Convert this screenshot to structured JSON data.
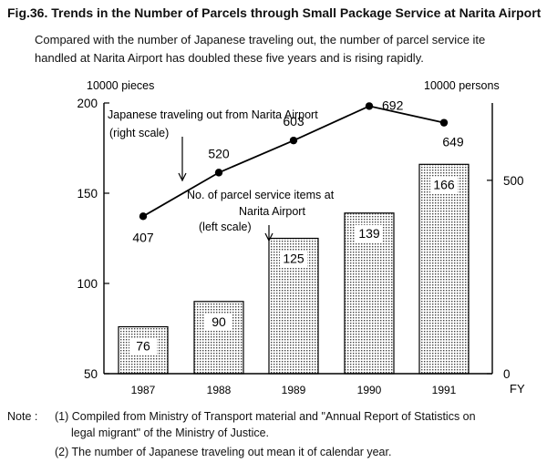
{
  "header": {
    "title": "Fig.36. Trends in the Number of Parcels through Small Package Service at Narita Airport",
    "subtitle_line1": "Compared with the number of Japanese traveling out, the number of parcel service ite",
    "subtitle_line2": "handled at Narita Airport has doubled these five years and is rising rapidly."
  },
  "chart_data": {
    "type": "bar",
    "categories": [
      "1987",
      "1988",
      "1989",
      "1990",
      "1991"
    ],
    "xlabel": "FY",
    "left_axis": {
      "unit": "10000 pieces",
      "ylim": [
        50,
        200
      ],
      "ticks": [
        "50",
        "100",
        "150",
        "200"
      ]
    },
    "right_axis": {
      "unit": "10000 persons",
      "ylim": [
        0,
        700
      ],
      "ticks": [
        "0",
        "500"
      ]
    },
    "series": [
      {
        "name": "No. of parcel service items at Narita Airport",
        "axis_note": "(left scale)",
        "type": "bar",
        "values": [
          76,
          90,
          125,
          139,
          166
        ]
      },
      {
        "name": "Japanese traveling out from Narita Airport",
        "axis_note": "(right scale)",
        "type": "line",
        "values": [
          407,
          520,
          603,
          692,
          649
        ]
      }
    ],
    "annotations": {
      "line_label_1": "Japanese traveling out from Narita Airport",
      "line_label_2": "(right scale)",
      "bar_label_1": "No. of parcel service items at",
      "bar_label_2": "Narita Airport",
      "bar_label_3": "(left scale)"
    },
    "grid": false,
    "colors": {
      "bar_fill": "#d8d8d8",
      "line": "#000000"
    }
  },
  "notes": {
    "label": "Note :",
    "item1_line1": "(1) Compiled from Ministry of Transport material and \"Annual Report of Statistics on",
    "item1_line2": "legal migrant\" of the Ministry of Justice.",
    "item2": "(2) The number of Japanese traveling out mean it of calendar year."
  }
}
